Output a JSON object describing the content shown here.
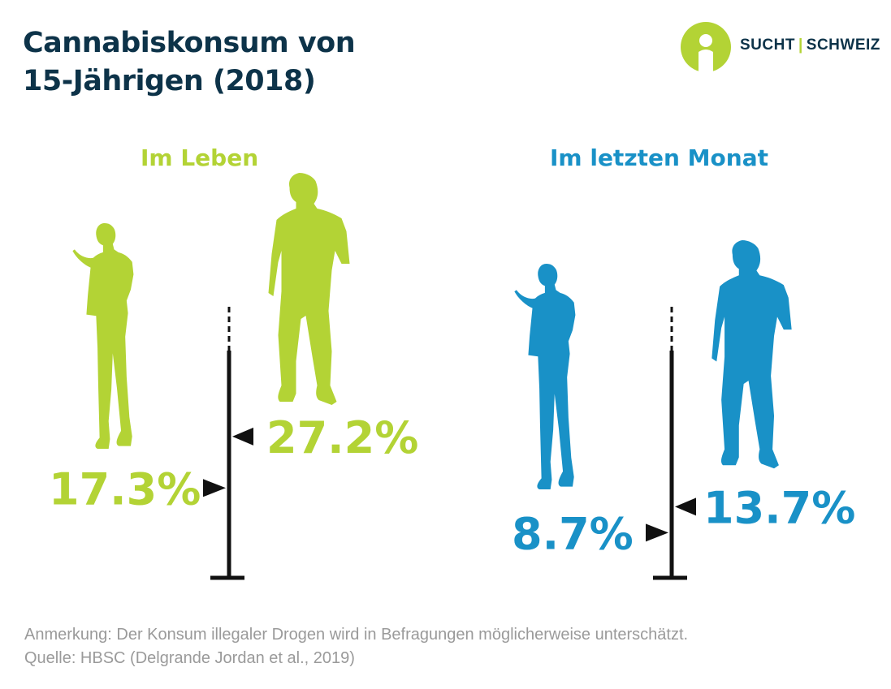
{
  "title": {
    "line1": "Cannabiskonsum von",
    "line2": "15-Jährigen (2018)"
  },
  "logo": {
    "left": "SUCHT",
    "right": "SCHWEIZ",
    "separator": "|"
  },
  "colors": {
    "title": "#0d3349",
    "green": "#b3d335",
    "blue": "#1991c7",
    "axis": "#111111",
    "note": "#9a9a9a"
  },
  "chart_data": [
    {
      "type": "bar",
      "title": "Im Leben",
      "unit": "%",
      "categories": [
        "female",
        "male"
      ],
      "values": [
        17.3,
        27.2
      ],
      "labels": [
        "17.3%",
        "27.2%"
      ],
      "color": "#b3d335"
    },
    {
      "type": "bar",
      "title": "Im letzten Monat",
      "unit": "%",
      "categories": [
        "female",
        "male"
      ],
      "values": [
        8.7,
        13.7
      ],
      "labels": [
        "8.7%",
        "13.7%"
      ],
      "color": "#1991c7"
    }
  ],
  "footer": {
    "note": "Anmerkung: Der Konsum illegaler Drogen wird in Befragungen möglicherweise unterschätzt.",
    "source": "Quelle: HBSC (Delgrande Jordan et al., 2019)"
  }
}
